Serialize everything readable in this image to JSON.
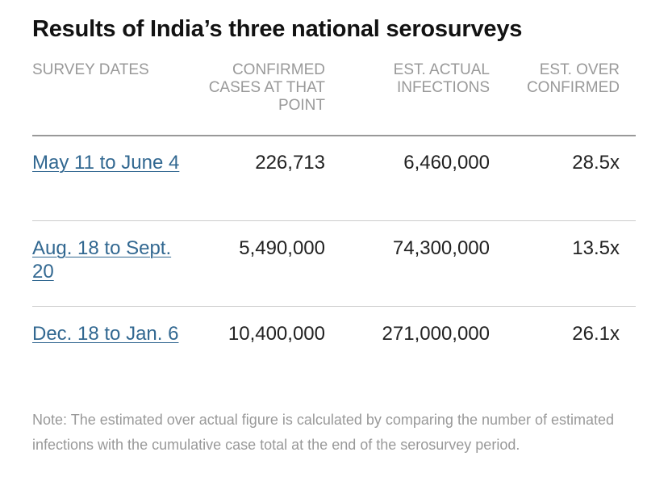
{
  "title": "Results of India’s three national serosurveys",
  "columns": {
    "survey_dates": "SURVEY DATES",
    "confirmed": "CONFIRMED CASES AT THAT POINT",
    "actual": "EST. ACTUAL INFECTIONS",
    "ratio": "EST. OVER CONFIRMED"
  },
  "rows": [
    {
      "date": "May 11 to June 4",
      "confirmed": "226,713",
      "actual": "6,460,000",
      "ratio": "28.5x"
    },
    {
      "date": "Aug. 18 to Sept. 20",
      "confirmed": "5,490,000",
      "actual": "74,300,000",
      "ratio": "13.5x"
    },
    {
      "date": "Dec. 18 to Jan. 6",
      "confirmed": "10,400,000",
      "actual": "271,000,000",
      "ratio": "26.1x"
    }
  ],
  "note": "Note: The estimated over actual figure is calculated by comparing the number of estimated infections with the cumulative case total at the end of the serosurvey period.",
  "colors": {
    "link": "#326891",
    "muted": "#999999",
    "text": "#222222"
  }
}
